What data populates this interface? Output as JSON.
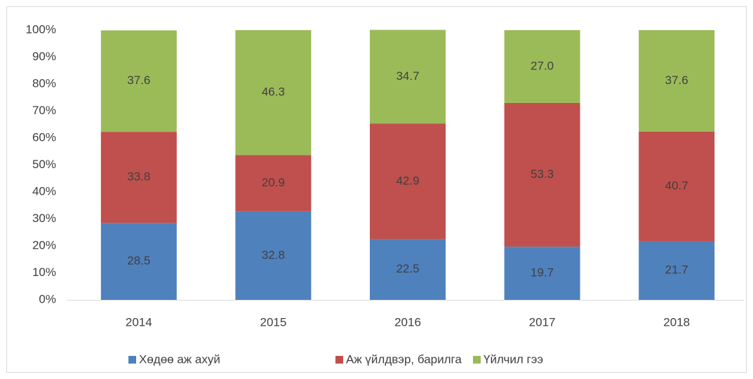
{
  "chart_data": {
    "type": "stacked_bar",
    "categories": [
      "2014",
      "2015",
      "2016",
      "2017",
      "2018"
    ],
    "series": [
      {
        "name": "Хөдөө аж ахуй",
        "color": "#4f81bd",
        "values": [
          28.5,
          32.8,
          22.5,
          19.7,
          21.7
        ],
        "value_labels": [
          "28.5",
          "32.8",
          "22.5",
          "19.7",
          "21.7"
        ]
      },
      {
        "name": "Аж үйлдвэр, барилга",
        "color": "#c0504d",
        "values": [
          33.8,
          20.9,
          42.9,
          53.3,
          40.7
        ],
        "value_labels": [
          "33.8",
          "20.9",
          "42.9",
          "53.3",
          "40.7"
        ]
      },
      {
        "name": "Үйлчил гээ",
        "color": "#9bbb59",
        "values": [
          37.6,
          46.3,
          34.7,
          27.0,
          37.6
        ],
        "value_labels": [
          "37.6",
          "46.3",
          "34.7",
          "27.0",
          "37.6"
        ]
      }
    ],
    "ylim": [
      0,
      100
    ],
    "yticks": [
      {
        "value": 0,
        "label": "0%"
      },
      {
        "value": 10,
        "label": "10%"
      },
      {
        "value": 20,
        "label": "20%"
      },
      {
        "value": 30,
        "label": "30%"
      },
      {
        "value": 40,
        "label": "40%"
      },
      {
        "value": 50,
        "label": "50%"
      },
      {
        "value": 60,
        "label": "60%"
      },
      {
        "value": 70,
        "label": "70%"
      },
      {
        "value": 80,
        "label": "80%"
      },
      {
        "value": 90,
        "label": "90%"
      },
      {
        "value": 100,
        "label": "100%"
      }
    ],
    "grid": false,
    "legend": "bottom"
  }
}
